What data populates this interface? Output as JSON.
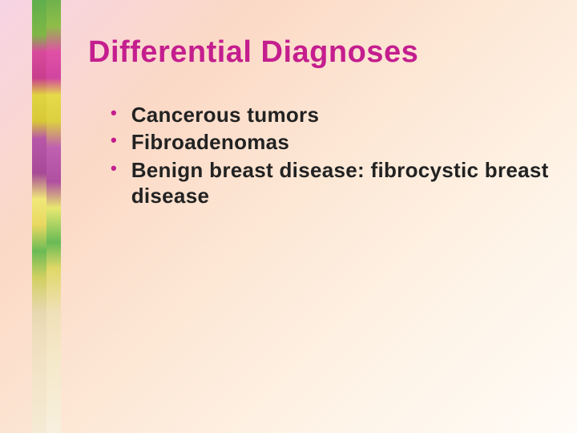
{
  "slide": {
    "title": "Differential Diagnoses",
    "title_color": "#c41e8e",
    "bullet_color": "#c41e8e",
    "text_color": "#222222",
    "bullets": [
      {
        "text": "Cancerous tumors"
      },
      {
        "text": "Fibroadenomas"
      },
      {
        "text": "Benign breast disease: fibrocystic breast disease"
      }
    ],
    "background": {
      "gradient_start": "#f7d4e4",
      "gradient_end": "#fffbf6"
    },
    "title_fontsize": 38,
    "bullet_fontsize": 26,
    "font_family": "Arial Black"
  }
}
